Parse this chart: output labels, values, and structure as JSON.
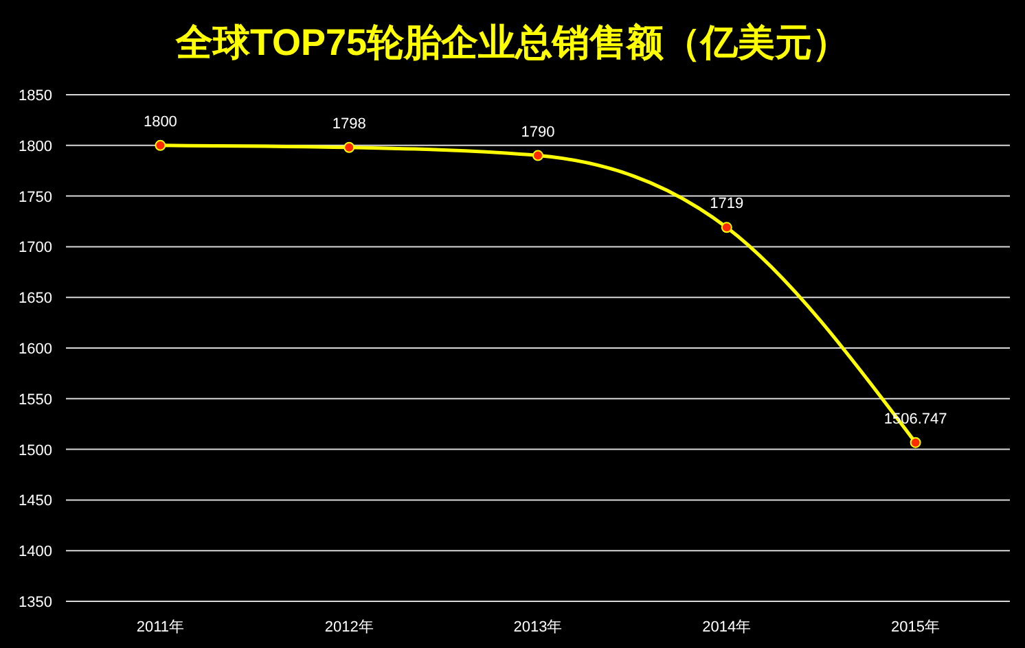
{
  "chart_data": {
    "type": "line",
    "title": "全球TOP75轮胎企业总销售额（亿美元）",
    "categories": [
      "2011年",
      "2012年",
      "2013年",
      "2014年",
      "2015年"
    ],
    "series": [
      {
        "color": "#ffff00",
        "values": [
          1800,
          1798,
          1790,
          1719,
          1506.747
        ]
      }
    ],
    "ylim": [
      1350,
      1850
    ],
    "yticks": [
      1350,
      1400,
      1450,
      1500,
      1550,
      1600,
      1650,
      1700,
      1750,
      1800,
      1850
    ],
    "grid": "y",
    "marker": "circle",
    "data_labels": true
  }
}
